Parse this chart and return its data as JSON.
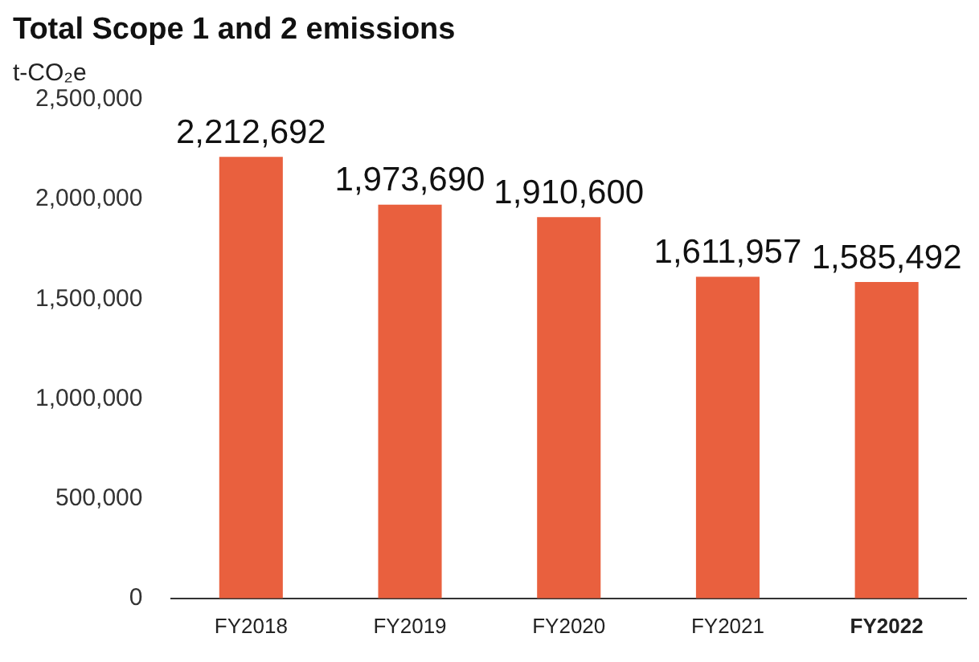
{
  "chart_data": {
    "type": "bar",
    "title": "Total Scope 1 and 2 emissions",
    "ylabel": "t-CO₂e",
    "categories": [
      "FY2018",
      "FY2019",
      "FY2020",
      "FY2021",
      "FY2022"
    ],
    "values": [
      2212692,
      1973690,
      1910600,
      1611957,
      1585492
    ],
    "value_labels": [
      "2,212,692",
      "1,973,690",
      "1,910,600",
      "1,611,957",
      "1,585,492"
    ],
    "color": "#e9603e",
    "ylim": [
      0,
      2500000
    ],
    "yticks": [
      {
        "value": 0,
        "label": "0"
      },
      {
        "value": 500000,
        "label": "500,000"
      },
      {
        "value": 1000000,
        "label": "1,000,000"
      },
      {
        "value": 1500000,
        "label": "1,500,000"
      },
      {
        "value": 2000000,
        "label": "2,000,000"
      },
      {
        "value": 2500000,
        "label": "2,500,000"
      }
    ],
    "grid": false
  }
}
